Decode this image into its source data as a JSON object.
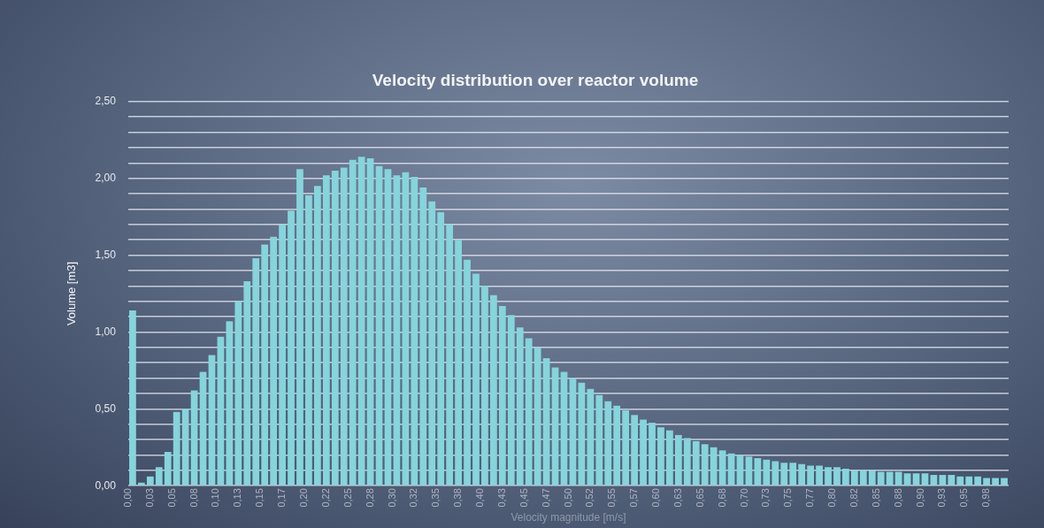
{
  "chart_data": {
    "type": "histogram",
    "title": "Velocity distribution over reactor volume",
    "xlabel": "Velocity magnitude [m/s]",
    "ylabel": "Volume [m3]",
    "color": "#86d4dc",
    "bins": [
      0,
      0.01,
      0.02,
      0.03,
      0.04,
      0.05,
      0.06,
      0.07,
      0.08,
      0.09,
      0.1,
      0.11,
      0.12,
      0.13,
      0.14,
      0.15,
      0.16,
      0.17,
      0.18,
      0.19,
      0.2,
      0.21,
      0.22,
      0.23,
      0.24,
      0.25,
      0.26,
      0.27,
      0.28,
      0.29,
      0.3,
      0.31,
      0.32,
      0.33,
      0.34,
      0.35,
      0.36,
      0.37,
      0.38,
      0.39,
      0.4,
      0.41,
      0.42,
      0.43,
      0.44,
      0.45,
      0.46,
      0.47,
      0.48,
      0.49,
      0.5,
      0.51,
      0.52,
      0.53,
      0.54,
      0.55,
      0.56,
      0.57,
      0.58,
      0.59,
      0.6,
      0.61,
      0.62,
      0.63,
      0.64,
      0.65,
      0.66,
      0.67,
      0.68,
      0.69,
      0.7,
      0.71,
      0.72,
      0.73,
      0.74,
      0.75,
      0.76,
      0.77,
      0.78,
      0.79,
      0.8,
      0.81,
      0.82,
      0.83,
      0.84,
      0.85,
      0.86,
      0.87,
      0.88,
      0.89,
      0.9,
      0.91,
      0.92,
      0.93,
      0.94,
      0.95,
      0.96,
      0.97,
      0.98,
      0.99,
      1
    ],
    "values": [
      1.14,
      0.02,
      0.06,
      0.12,
      0.22,
      0.48,
      0.5,
      0.62,
      0.74,
      0.85,
      0.97,
      1.07,
      1.2,
      1.33,
      1.48,
      1.57,
      1.62,
      1.7,
      1.79,
      2.06,
      1.89,
      1.95,
      2.02,
      2.05,
      2.07,
      2.12,
      2.14,
      2.13,
      2.08,
      2.06,
      2.02,
      2.04,
      2.01,
      1.94,
      1.85,
      1.78,
      1.7,
      1.6,
      1.47,
      1.38,
      1.3,
      1.24,
      1.17,
      1.11,
      1.03,
      0.96,
      0.9,
      0.83,
      0.77,
      0.74,
      0.7,
      0.67,
      0.63,
      0.59,
      0.55,
      0.52,
      0.49,
      0.46,
      0.43,
      0.41,
      0.38,
      0.36,
      0.33,
      0.31,
      0.29,
      0.27,
      0.25,
      0.23,
      0.21,
      0.2,
      0.19,
      0.18,
      0.17,
      0.16,
      0.15,
      0.15,
      0.14,
      0.13,
      0.13,
      0.12,
      0.12,
      0.11,
      0.1,
      0.1,
      0.1,
      0.09,
      0.09,
      0.09,
      0.08,
      0.08,
      0.08,
      0.07,
      0.07,
      0.07,
      0.06,
      0.06,
      0.06,
      0.05,
      0.05,
      0.05
    ],
    "xlim": [
      0,
      1
    ],
    "xticks": [
      {
        "value": 0,
        "label": "0,00"
      },
      {
        "value": 0.025,
        "label": "0,03"
      },
      {
        "value": 0.05,
        "label": "0,05"
      },
      {
        "value": 0.075,
        "label": "0,08"
      },
      {
        "value": 0.1,
        "label": "0,10"
      },
      {
        "value": 0.125,
        "label": "0,13"
      },
      {
        "value": 0.15,
        "label": "0,15"
      },
      {
        "value": 0.175,
        "label": "0,17"
      },
      {
        "value": 0.2,
        "label": "0,20"
      },
      {
        "value": 0.225,
        "label": "0,22"
      },
      {
        "value": 0.25,
        "label": "0,25"
      },
      {
        "value": 0.275,
        "label": "0,28"
      },
      {
        "value": 0.3,
        "label": "0,30"
      },
      {
        "value": 0.325,
        "label": "0,32"
      },
      {
        "value": 0.35,
        "label": "0,35"
      },
      {
        "value": 0.375,
        "label": "0,38"
      },
      {
        "value": 0.4,
        "label": "0,40"
      },
      {
        "value": 0.425,
        "label": "0,43"
      },
      {
        "value": 0.45,
        "label": "0,45"
      },
      {
        "value": 0.475,
        "label": "0,47"
      },
      {
        "value": 0.5,
        "label": "0,50"
      },
      {
        "value": 0.525,
        "label": "0,52"
      },
      {
        "value": 0.55,
        "label": "0,55"
      },
      {
        "value": 0.575,
        "label": "0,57"
      },
      {
        "value": 0.6,
        "label": "0,60"
      },
      {
        "value": 0.625,
        "label": "0,63"
      },
      {
        "value": 0.65,
        "label": "0,65"
      },
      {
        "value": 0.675,
        "label": "0,68"
      },
      {
        "value": 0.7,
        "label": "0,70"
      },
      {
        "value": 0.725,
        "label": "0,73"
      },
      {
        "value": 0.75,
        "label": "0,75"
      },
      {
        "value": 0.775,
        "label": "0,77"
      },
      {
        "value": 0.8,
        "label": "0,80"
      },
      {
        "value": 0.825,
        "label": "0,82"
      },
      {
        "value": 0.85,
        "label": "0,85"
      },
      {
        "value": 0.875,
        "label": "0,88"
      },
      {
        "value": 0.9,
        "label": "0,90"
      },
      {
        "value": 0.925,
        "label": "0,93"
      },
      {
        "value": 0.95,
        "label": "0,95"
      },
      {
        "value": 0.975,
        "label": "0,98"
      }
    ],
    "ylim": [
      0,
      2.5
    ],
    "yticks": [
      {
        "value": 0,
        "label": "0,00"
      },
      {
        "value": 0.1,
        "label": null
      },
      {
        "value": 0.2,
        "label": null
      },
      {
        "value": 0.3,
        "label": null
      },
      {
        "value": 0.4,
        "label": null
      },
      {
        "value": 0.5,
        "label": "0,50"
      },
      {
        "value": 0.6,
        "label": null
      },
      {
        "value": 0.7,
        "label": null
      },
      {
        "value": 0.8,
        "label": null
      },
      {
        "value": 0.9,
        "label": null
      },
      {
        "value": 1,
        "label": "1,00"
      },
      {
        "value": 1.1,
        "label": null
      },
      {
        "value": 1.2,
        "label": null
      },
      {
        "value": 1.3,
        "label": null
      },
      {
        "value": 1.4,
        "label": null
      },
      {
        "value": 1.5,
        "label": "1,50"
      },
      {
        "value": 1.6,
        "label": null
      },
      {
        "value": 1.7,
        "label": null
      },
      {
        "value": 1.8,
        "label": null
      },
      {
        "value": 1.9,
        "label": null
      },
      {
        "value": 2,
        "label": "2,00"
      },
      {
        "value": 2.1,
        "label": null
      },
      {
        "value": 2.2,
        "label": null
      },
      {
        "value": 2.3,
        "label": null
      },
      {
        "value": 2.4,
        "label": null
      },
      {
        "value": 2.5,
        "label": "2,50"
      }
    ],
    "grid": "y"
  }
}
